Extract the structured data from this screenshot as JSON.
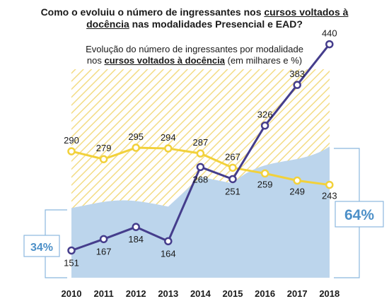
{
  "header": {
    "line1_pre": "Como o evoluiu o número de ingressantes nos ",
    "line1_em": "cursos voltados à",
    "line2_em": "docência",
    "line2_post": " nas modalidades Presencial e EAD?"
  },
  "chart_data": {
    "type": "line",
    "subtitle_line1": "Evolução do número de ingressantes por modalidade",
    "subtitle_pre": "nos ",
    "subtitle_em": "cursos voltados à docência",
    "subtitle_post": " (em milhares e %)",
    "categories": [
      "2010",
      "2011",
      "2012",
      "2013",
      "2014",
      "2015",
      "2016",
      "2017",
      "2018"
    ],
    "series": [
      {
        "values": [
          290,
          279,
          295,
          294,
          287,
          267,
          259,
          249,
          243
        ],
        "color": "#f2d13a"
      },
      {
        "values": [
          151,
          167,
          184,
          164,
          268,
          251,
          326,
          383,
          440
        ],
        "color": "#453d8c"
      }
    ],
    "share_start": "34%",
    "share_end": "64%",
    "share_start_value": 0.34,
    "share_end_value": 0.64,
    "colors": {
      "area_fill": "#bcd5ec",
      "hatch": "#f3dc85",
      "bracket": "#8bb8de",
      "share_text": "#4d90c8"
    }
  }
}
